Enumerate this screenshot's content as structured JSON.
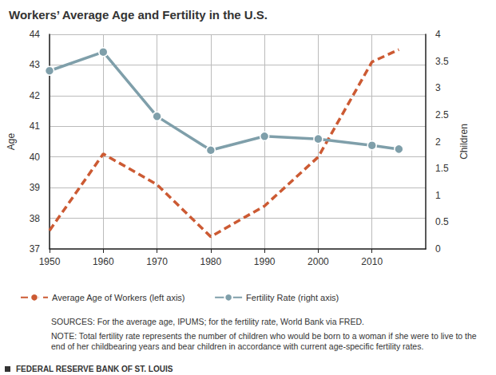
{
  "chart_data": {
    "type": "line",
    "title": "Workers’ Average Age and Fertility in the U.S.",
    "x": [
      1950,
      1960,
      1970,
      1980,
      1990,
      2000,
      2010,
      2015
    ],
    "xlim": [
      1950,
      2020
    ],
    "xticks": [
      1950,
      1960,
      1970,
      1980,
      1990,
      2000,
      2010
    ],
    "ylabel": "Age",
    "ylim": [
      37,
      44
    ],
    "yticks": [
      37,
      38,
      39,
      40,
      41,
      42,
      43,
      44
    ],
    "y2label": "Children",
    "y2lim": [
      0,
      4
    ],
    "y2ticks": [
      0,
      0.5,
      1,
      1.5,
      2,
      2.5,
      3,
      3.5,
      4
    ],
    "series": [
      {
        "name": "Average Age of Workers (left axis)",
        "color": "#cc5a33",
        "line_style": "dashed",
        "marker": "none",
        "values": [
          37.6,
          40.1,
          39.1,
          37.4,
          38.4,
          40.0,
          43.1,
          43.5
        ]
      },
      {
        "name": "Fertility Rate (right axis)",
        "color": "#7f9faa",
        "line_style": "solid",
        "marker": "circle",
        "axis": "y2",
        "values": [
          3.32,
          3.67,
          2.47,
          1.84,
          2.1,
          2.05,
          1.93,
          1.86
        ]
      }
    ],
    "grid": true,
    "legend": "bottom",
    "annotations": [
      "SOURCES: For the average age, IPUMS; for the fertility rate, World Bank via FRED.",
      "NOTE: Total fertility rate represents the number of children who would be born to a woman if she were to live to the end of her childbearing years and bear children in accordance with current age-specific fertility rates.",
      "FEDERAL RESERVE BANK OF ST. LOUIS"
    ]
  }
}
